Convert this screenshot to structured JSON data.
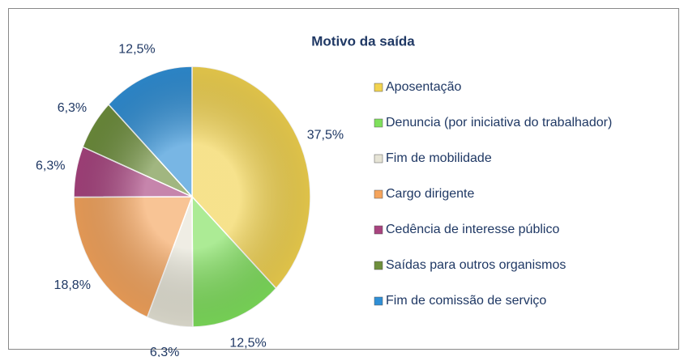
{
  "chart_data": {
    "type": "pie",
    "title": "Motivo da saída",
    "categories": [
      "Aposentação",
      "Denuncia (por iniciativa do trabalhador)",
      "Fim de mobilidade",
      "Cargo dirigente",
      "Cedência de interesse público",
      "Saídas  para outros organismos",
      "Fim de comissão de serviço"
    ],
    "values": [
      37.5,
      12.5,
      6.3,
      18.8,
      6.3,
      6.3,
      12.5
    ],
    "value_labels": [
      "37,5%",
      "12,5%",
      "6,3%",
      "18,8%",
      "6,3%",
      "6,3%",
      "12,5%"
    ],
    "colors": [
      "#f2d34f",
      "#7fe05c",
      "#e6e4d6",
      "#f5a45c",
      "#a8437f",
      "#6e8f3c",
      "#2f8fd6"
    ],
    "legend": "right"
  }
}
